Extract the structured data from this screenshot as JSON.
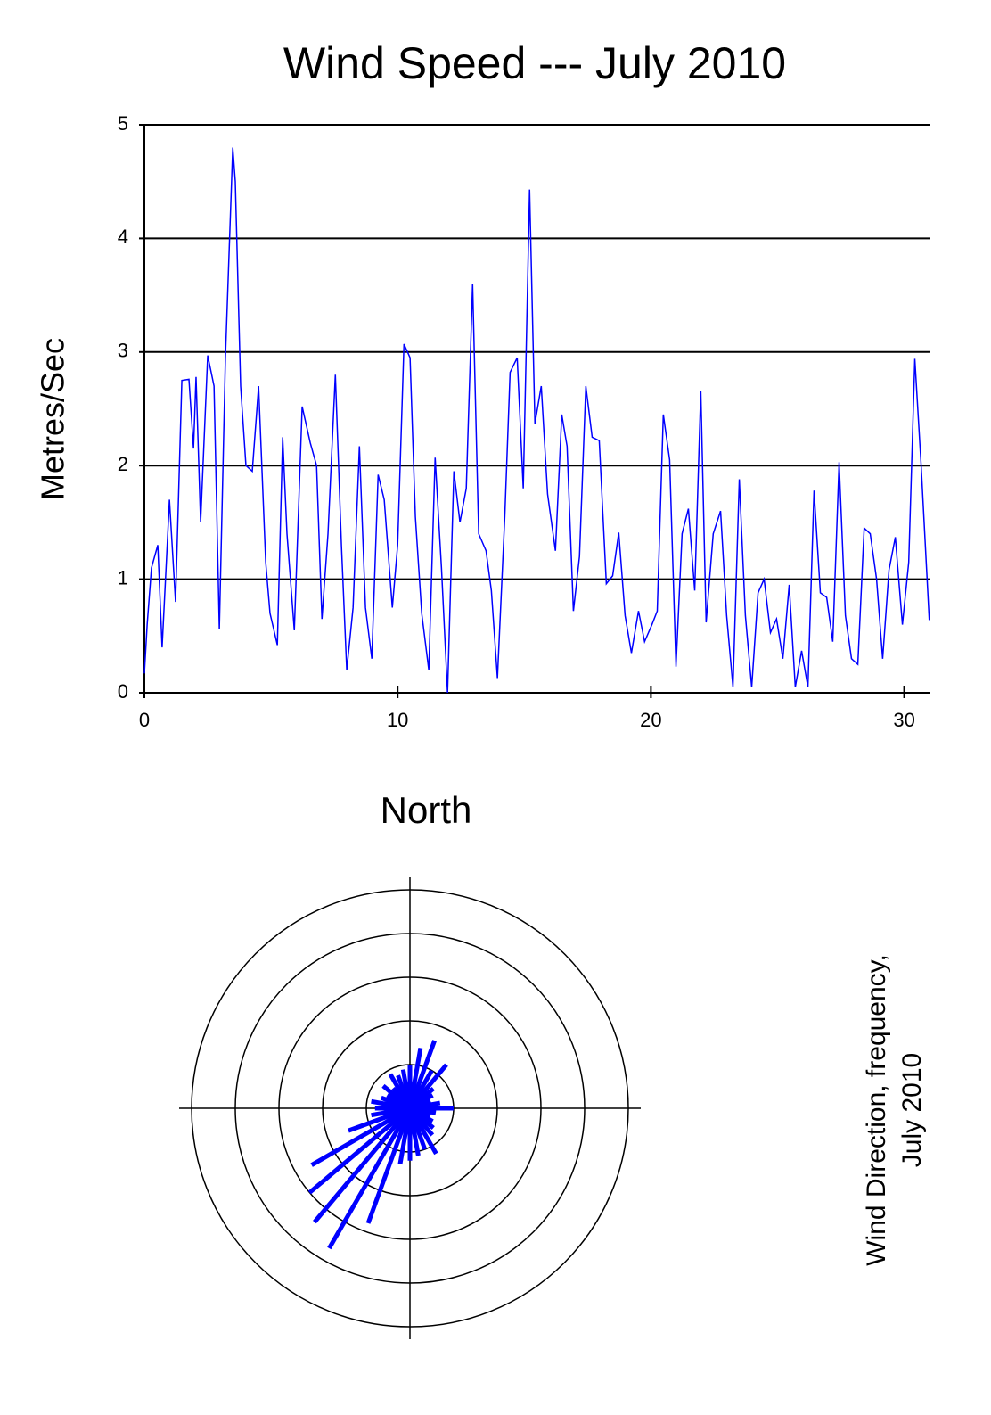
{
  "chart_data": [
    {
      "type": "line",
      "title": "Wind Speed --- July 2010",
      "ylabel": "Metres/Sec",
      "xlim": [
        0,
        31
      ],
      "xticks": [
        0,
        10,
        20,
        30
      ],
      "ylim": [
        0,
        5
      ],
      "yticks": [
        0,
        1,
        2,
        3,
        4,
        5
      ],
      "grid": true,
      "series": [
        {
          "color": "#0000ff",
          "x": [
            0,
            0.11,
            0.28,
            0.53,
            0.7,
            0.99,
            1.23,
            1.48,
            1.76,
            1.94,
            2.04,
            2.22,
            2.5,
            2.75,
            2.96,
            3.2,
            3.49,
            3.59,
            3.8,
            4.01,
            4.26,
            4.51,
            4.79,
            4.96,
            5.25,
            5.46,
            5.63,
            5.92,
            6.23,
            6.55,
            6.8,
            7.01,
            7.25,
            7.54,
            7.78,
            7.99,
            8.24,
            8.49,
            8.73,
            8.98,
            9.23,
            9.47,
            9.79,
            10.0,
            10.25,
            10.49,
            10.7,
            10.95,
            11.23,
            11.48,
            11.73,
            11.97,
            12.22,
            12.46,
            12.71,
            12.96,
            13.2,
            13.49,
            13.7,
            13.94,
            14.23,
            14.44,
            14.72,
            14.96,
            15.21,
            15.42,
            15.67,
            15.92,
            16.23,
            16.48,
            16.69,
            16.94,
            17.18,
            17.43,
            17.68,
            17.96,
            18.24,
            18.49,
            18.73,
            18.98,
            19.23,
            19.51,
            19.75,
            20.04,
            20.25,
            20.49,
            20.74,
            20.99,
            21.23,
            21.48,
            21.73,
            21.97,
            22.18,
            22.46,
            22.75,
            22.99,
            23.24,
            23.49,
            23.73,
            23.98,
            24.23,
            24.47,
            24.72,
            24.96,
            25.21,
            25.46,
            25.7,
            25.95,
            26.2,
            26.44,
            26.69,
            26.94,
            27.18,
            27.43,
            27.68,
            27.92,
            28.17,
            28.42,
            28.66,
            28.91,
            29.15,
            29.4,
            29.65,
            29.93,
            30.18,
            30.42,
            30.67,
            30.99
          ],
          "values": [
            0.17,
            0.6,
            1.1,
            1.3,
            0.4,
            1.7,
            0.8,
            2.75,
            2.76,
            2.15,
            2.78,
            1.5,
            2.97,
            2.7,
            0.56,
            2.95,
            4.8,
            4.5,
            2.7,
            2.0,
            1.95,
            2.7,
            1.15,
            0.7,
            0.42,
            2.25,
            1.4,
            0.55,
            2.52,
            2.2,
            2.0,
            0.65,
            1.4,
            2.8,
            1.3,
            0.2,
            0.75,
            2.17,
            0.75,
            0.3,
            1.92,
            1.7,
            0.75,
            1.3,
            3.07,
            2.95,
            1.55,
            0.7,
            0.2,
            2.07,
            1.1,
            0.0,
            1.95,
            1.5,
            1.8,
            3.6,
            1.4,
            1.25,
            0.9,
            0.13,
            1.55,
            2.82,
            2.95,
            1.8,
            4.43,
            2.37,
            2.7,
            1.75,
            1.25,
            2.45,
            2.17,
            0.72,
            1.2,
            2.7,
            2.25,
            2.22,
            0.96,
            1.03,
            1.41,
            0.68,
            0.35,
            0.72,
            0.45,
            0.6,
            0.72,
            2.45,
            2.05,
            0.23,
            1.4,
            1.62,
            0.9,
            2.66,
            0.62,
            1.4,
            1.6,
            0.68,
            0.05,
            1.88,
            0.68,
            0.05,
            0.88,
            1.0,
            0.53,
            0.65,
            0.3,
            0.95,
            0.05,
            0.37,
            0.05,
            1.78,
            0.88,
            0.84,
            0.45,
            2.03,
            0.68,
            0.3,
            0.25,
            1.45,
            1.4,
            1.0,
            0.3,
            1.08,
            1.37,
            0.6,
            1.15,
            2.94,
            2.0,
            0.64
          ]
        }
      ]
    },
    {
      "type": "rose",
      "title": "North",
      "side_label": [
        "Wind Direction, frequency,",
        "July 2010"
      ],
      "rlim": [
        0,
        5
      ],
      "rticks": [
        1,
        2,
        3,
        4,
        5
      ],
      "color": "#0000ff",
      "directions": [
        0,
        10,
        20,
        30,
        40,
        50,
        60,
        70,
        80,
        90,
        100,
        110,
        120,
        130,
        140,
        150,
        160,
        170,
        180,
        190,
        200,
        210,
        220,
        230,
        240,
        250,
        260,
        270,
        280,
        290,
        300,
        310,
        320,
        330,
        340,
        350
      ],
      "values": [
        1.0,
        1.4,
        1.65,
        1.0,
        1.3,
        0.7,
        0.6,
        0.5,
        0.7,
        1.0,
        0.6,
        0.5,
        0.6,
        0.7,
        0.8,
        1.2,
        1.0,
        1.1,
        1.2,
        1.3,
        2.8,
        3.7,
        3.4,
        3.0,
        2.6,
        1.5,
        0.9,
        0.8,
        0.9,
        0.7,
        0.6,
        0.8,
        0.6,
        0.9,
        0.8,
        0.9
      ]
    }
  ]
}
